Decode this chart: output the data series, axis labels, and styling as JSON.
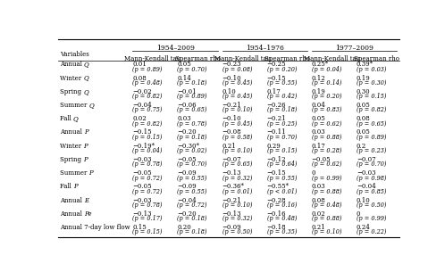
{
  "periods": [
    "1954–2009",
    "1954–1976",
    "1977–2009"
  ],
  "col_headers": [
    "Mann-Kendall tau",
    "Spearman rho",
    "Mann-Kendall tau",
    "Spearman rho",
    "Mann-Kendall tau",
    "Spearman rho"
  ],
  "row_labels": [
    [
      "Annual ",
      "Q"
    ],
    [
      "Winter ",
      "Q"
    ],
    [
      "Spring ",
      "Q"
    ],
    [
      "Summer ",
      "Q"
    ],
    [
      "Fall ",
      "Q"
    ],
    [
      "Annual ",
      "P"
    ],
    [
      "Winter ",
      "P"
    ],
    [
      "Spring ",
      "P"
    ],
    [
      "Summer ",
      "P"
    ],
    [
      "Fall ",
      "P"
    ],
    [
      "Annual ",
      "E"
    ],
    [
      "Annual ",
      "Pe"
    ],
    [
      "Annual 7-day low flow",
      ""
    ]
  ],
  "data": [
    [
      [
        "0.01",
        "(p = 0.89)"
      ],
      [
        "0.05",
        "(p = 0.70)"
      ],
      [
        "−0.23",
        "(p = 0.08)"
      ],
      [
        "−0.25",
        "(p = 0.20)"
      ],
      [
        "0.25*",
        "(p = 0.04)"
      ],
      [
        "0.39*",
        "(p = 0.03)"
      ]
    ],
    [
      [
        "0.08",
        "(p = 0.48)"
      ],
      [
        "0.14",
        "(p = 0.18)"
      ],
      [
        "−0.10",
        "(p = 0.45)"
      ],
      [
        "−0.15",
        "(p = 0.55)"
      ],
      [
        "0.12",
        "(p = 0.14)"
      ],
      [
        "0.19",
        "(p = 0.30)"
      ]
    ],
    [
      [
        "−0.02",
        "(p = 0.82)"
      ],
      [
        "−0.01",
        "(p = 0.89)"
      ],
      [
        "0.10",
        "(p = 0.45)"
      ],
      [
        "0.17",
        "(p = 0.42)"
      ],
      [
        "0.19",
        "(p = 0.20)"
      ],
      [
        "0.30",
        "(p = 0.15)"
      ]
    ],
    [
      [
        "−0.04",
        "(p = 0.75)"
      ],
      [
        "−0.06",
        "(p = 0.65)"
      ],
      [
        "−0.21",
        "(p = 0.10)"
      ],
      [
        "−0.26",
        "(p = 0.18)"
      ],
      [
        "0.04",
        "(p = 0.83)"
      ],
      [
        "0.05",
        "(p = 0.82)"
      ]
    ],
    [
      [
        "0.02",
        "(p = 0.82)"
      ],
      [
        "0.03",
        "(p = 0.78)"
      ],
      [
        "−0.10",
        "(p = 0.45)"
      ],
      [
        "−0.21",
        "(p = 0.25)"
      ],
      [
        "0.05",
        "(p = 0.62)"
      ],
      [
        "0.08",
        "(p = 0.65)"
      ]
    ],
    [
      [
        "−0.15",
        "(p = 0.15)"
      ],
      [
        "−0.20",
        "(p = 0.18)"
      ],
      [
        "−0.08",
        "(p = 0.58)"
      ],
      [
        "−0.11",
        "(p = 0.70)"
      ],
      [
        "0.03",
        "(p = 0.88)"
      ],
      [
        "0.05",
        "(p = 0.89)"
      ]
    ],
    [
      [
        "−0.19*",
        "(p = 0.04)"
      ],
      [
        "−0.30*",
        "(p = 0.02)"
      ],
      [
        "0.21",
        "(p = 0.10)"
      ],
      [
        "0.29",
        "(p = 0.15)"
      ],
      [
        "0.17",
        "(p = 0.28)"
      ],
      [
        "0.2",
        "(p = 0.23)"
      ]
    ],
    [
      [
        "−0.03",
        "(p = 0.78)"
      ],
      [
        "−0.05",
        "(p = 0.70)"
      ],
      [
        "−0.07",
        "(p = 0.65)"
      ],
      [
        "−0.12",
        "(p = 0.64)"
      ],
      [
        "−0.05",
        "(p = 0.62)"
      ],
      [
        "−0.07",
        "(p = 0.70)"
      ]
    ],
    [
      [
        "−0.05",
        "(p = 0.72)"
      ],
      [
        "−0.09",
        "(p = 0.55)"
      ],
      [
        "−0.13",
        "(p = 0.32)"
      ],
      [
        "−0.15",
        "(p = 0.55)"
      ],
      [
        "0",
        "(p = 0.99)"
      ],
      [
        "−0.03",
        "(p = 0.98)"
      ]
    ],
    [
      [
        "−0.05",
        "(p = 0.72)"
      ],
      [
        "−0.09",
        "(p = 0.55)"
      ],
      [
        "−0.36*",
        "(p = 0.01)"
      ],
      [
        "−0.55*",
        "(p < 0.01)"
      ],
      [
        "0.03",
        "(p = 0.88)"
      ],
      [
        "−0.04",
        "(p = 0.85)"
      ]
    ],
    [
      [
        "−0.03",
        "(p = 0.78)"
      ],
      [
        "−0.04",
        "(p = 0.72)"
      ],
      [
        "−0.21",
        "(p = 0.10)"
      ],
      [
        "−0.28",
        "(p = 0.16)"
      ],
      [
        "0.08",
        "(p = 0.48)"
      ],
      [
        "0.10",
        "(p = 0.50)"
      ]
    ],
    [
      [
        "−0.13",
        "(p = 0.17)"
      ],
      [
        "−0.20",
        "(p = 0.18)"
      ],
      [
        "−0.13",
        "(p = 0.32)"
      ],
      [
        "−0.16",
        "(p = 0.48)"
      ],
      [
        "0.02",
        "(p = 0.88)"
      ],
      [
        "0",
        "(p = 0.99)"
      ]
    ],
    [
      [
        "0.15",
        "(p = 0.15)"
      ],
      [
        "0.20",
        "(p = 0.18)"
      ],
      [
        "−0.09",
        "(p = 0.50)"
      ],
      [
        "−0.18",
        "(p = 0.35)"
      ],
      [
        "0.21",
        "(p = 0.10)"
      ],
      [
        "0.24",
        "(p = 0.22)"
      ]
    ]
  ]
}
